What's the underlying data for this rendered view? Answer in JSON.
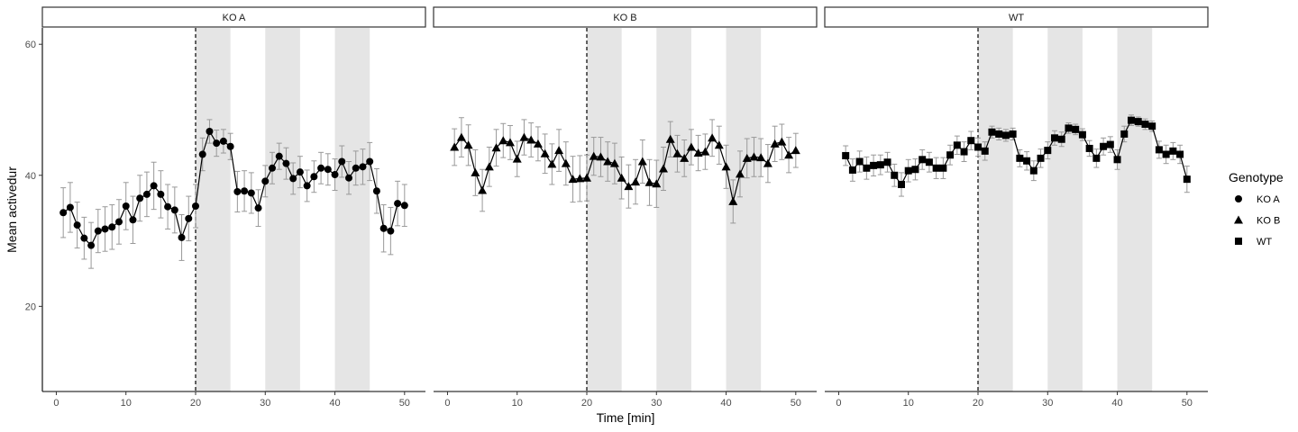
{
  "chart_data": {
    "type": "line",
    "facet_by": "Genotype",
    "panels": [
      "KO A",
      "KO B",
      "WT"
    ],
    "xlabel": "Time [min]",
    "ylabel": "Mean activedur",
    "xlim": [
      -2,
      53
    ],
    "ylim": [
      7,
      62.5
    ],
    "x_ticks": [
      0,
      10,
      20,
      30,
      40,
      50
    ],
    "y_ticks": [
      20,
      40,
      60
    ],
    "vline_x": 20,
    "shaded_intervals": [
      [
        20,
        25
      ],
      [
        30,
        35
      ],
      [
        40,
        45
      ]
    ],
    "grid": false,
    "legend": {
      "title": "Genotype",
      "position": "right",
      "entries": [
        {
          "label": "KO A",
          "shape": "circle"
        },
        {
          "label": "KO B",
          "shape": "triangle"
        },
        {
          "label": "WT",
          "shape": "square"
        }
      ]
    },
    "colors": {
      "line": "#000000",
      "errorbar": "#999999",
      "shade": "#e5e5e5",
      "strip_bg": "#ffffff"
    },
    "series": [
      {
        "name": "KO A",
        "shape": "circle",
        "x": [
          1,
          2,
          3,
          4,
          5,
          6,
          7,
          8,
          9,
          10,
          11,
          12,
          13,
          14,
          15,
          16,
          17,
          18,
          19,
          20,
          21,
          22,
          23,
          24,
          25,
          26,
          27,
          28,
          29,
          30,
          31,
          32,
          33,
          34,
          35,
          36,
          37,
          38,
          39,
          40,
          41,
          42,
          43,
          44,
          45,
          46,
          47,
          48,
          49,
          50
        ],
        "y": [
          34.3,
          35.1,
          32.4,
          30.4,
          29.3,
          31.5,
          31.8,
          32.1,
          32.9,
          35.3,
          33.2,
          36.5,
          37.1,
          38.4,
          37.1,
          35.2,
          34.7,
          30.5,
          33.4,
          35.3,
          43.2,
          46.7,
          44.9,
          45.2,
          44.4,
          37.5,
          37.6,
          37.3,
          35.0,
          39.1,
          41.1,
          42.9,
          41.8,
          39.5,
          40.5,
          38.4,
          39.8,
          41.1,
          40.9,
          40.1,
          42.1,
          39.6,
          41.1,
          41.3,
          42.1,
          37.6,
          31.9,
          31.5,
          35.7,
          35.4
        ],
        "err": [
          3.8,
          3.8,
          3.5,
          3.2,
          3.5,
          3.3,
          3.4,
          3.4,
          3.4,
          3.6,
          3.6,
          3.5,
          3.4,
          3.6,
          3.6,
          3.4,
          3.5,
          3.5,
          3.4,
          3.3,
          2.5,
          1.8,
          2.0,
          1.8,
          2.0,
          3.1,
          3.1,
          3.1,
          2.8,
          2.4,
          2.4,
          2.0,
          2.4,
          2.4,
          2.4,
          2.4,
          2.4,
          2.4,
          2.4,
          2.4,
          2.4,
          2.5,
          2.6,
          2.7,
          2.9,
          3.4,
          3.6,
          3.6,
          3.4,
          3.2
        ]
      },
      {
        "name": "KO B",
        "shape": "triangle",
        "x": [
          1,
          2,
          3,
          4,
          5,
          6,
          7,
          8,
          9,
          10,
          11,
          12,
          13,
          14,
          15,
          16,
          17,
          18,
          19,
          20,
          21,
          22,
          23,
          24,
          25,
          26,
          27,
          28,
          29,
          30,
          31,
          32,
          33,
          34,
          35,
          36,
          37,
          38,
          39,
          40,
          41,
          42,
          43,
          44,
          45,
          46,
          47,
          48,
          49,
          50
        ],
        "y": [
          44.3,
          45.8,
          44.6,
          40.4,
          37.7,
          41.3,
          44.2,
          45.3,
          45.0,
          42.5,
          45.8,
          45.4,
          44.8,
          43.3,
          41.7,
          43.8,
          41.8,
          39.4,
          39.5,
          39.6,
          42.9,
          42.8,
          42.1,
          41.8,
          39.6,
          38.3,
          39.0,
          42.1,
          38.9,
          38.7,
          41.0,
          45.5,
          43.3,
          42.6,
          44.3,
          43.4,
          43.6,
          45.7,
          44.6,
          41.3,
          36.0,
          40.2,
          42.6,
          42.8,
          42.7,
          41.8,
          44.8,
          45.1,
          43.1,
          43.8
        ],
        "err": [
          2.8,
          3.0,
          3.1,
          3.5,
          3.2,
          3.0,
          2.8,
          2.6,
          2.6,
          2.7,
          2.7,
          2.6,
          2.6,
          3.0,
          3.1,
          3.2,
          3.3,
          3.5,
          3.5,
          3.5,
          2.9,
          3.0,
          3.0,
          3.1,
          3.2,
          3.3,
          3.4,
          3.3,
          3.5,
          3.6,
          3.3,
          2.7,
          2.8,
          2.8,
          2.7,
          2.7,
          2.7,
          2.8,
          2.9,
          3.3,
          3.3,
          3.5,
          3.0,
          3.0,
          2.9,
          2.9,
          2.7,
          2.7,
          2.7,
          2.6
        ]
      },
      {
        "name": "WT",
        "shape": "square",
        "x": [
          1,
          2,
          3,
          4,
          5,
          6,
          7,
          8,
          9,
          10,
          11,
          12,
          13,
          14,
          15,
          16,
          17,
          18,
          19,
          20,
          21,
          22,
          23,
          24,
          25,
          26,
          27,
          28,
          29,
          30,
          31,
          32,
          33,
          34,
          35,
          36,
          37,
          38,
          39,
          40,
          41,
          42,
          43,
          44,
          45,
          46,
          47,
          48,
          49,
          50
        ],
        "y": [
          43.0,
          40.8,
          42.1,
          41.1,
          41.5,
          41.6,
          42.0,
          40.0,
          38.6,
          40.7,
          40.9,
          42.4,
          42.0,
          41.1,
          41.1,
          43.1,
          44.6,
          43.6,
          45.3,
          44.3,
          43.7,
          46.6,
          46.3,
          46.1,
          46.3,
          42.6,
          42.2,
          40.7,
          42.6,
          43.8,
          45.7,
          45.5,
          47.2,
          47.0,
          46.2,
          44.1,
          42.6,
          44.4,
          44.7,
          42.4,
          46.3,
          48.4,
          48.2,
          47.8,
          47.5,
          43.9,
          43.2,
          43.7,
          43.2,
          39.4
        ],
        "err": [
          1.5,
          1.7,
          1.6,
          1.7,
          1.6,
          1.5,
          1.5,
          1.7,
          1.8,
          1.7,
          1.6,
          1.5,
          1.5,
          1.6,
          1.6,
          1.5,
          1.4,
          1.5,
          1.4,
          1.4,
          1.4,
          0.9,
          0.9,
          0.9,
          0.9,
          1.3,
          1.4,
          1.5,
          1.4,
          1.3,
          1.1,
          1.1,
          0.8,
          0.8,
          0.9,
          1.2,
          1.4,
          1.3,
          1.2,
          1.5,
          1.2,
          0.8,
          0.7,
          0.8,
          0.8,
          1.3,
          1.4,
          1.3,
          1.4,
          2.0
        ]
      }
    ]
  }
}
